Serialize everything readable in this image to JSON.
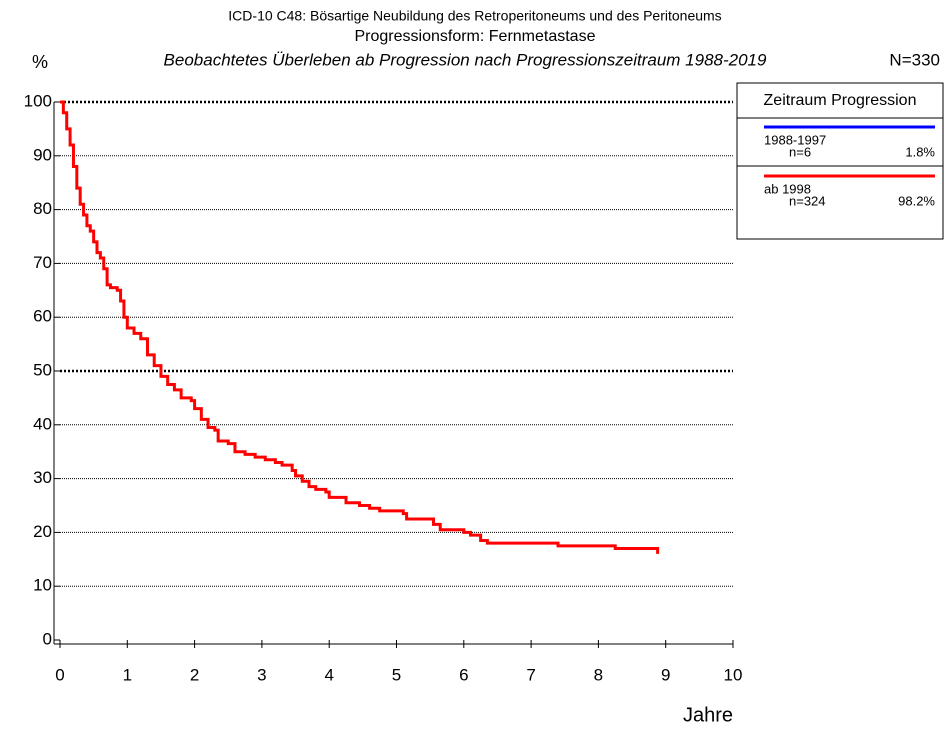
{
  "chart_data": {
    "type": "step",
    "title": "ICD-10 C48: Bösartige Neubildung des Retroperitoneums und des Peritoneums",
    "subtitle_1": "Progressionsform: Fernmetastase",
    "subtitle_2": "Beobachtetes Überleben ab Progression nach Progressionszeitraum 1988-2019",
    "total_n": "N=330",
    "ylabel": "%",
    "xlabel": "Jahre",
    "xlim": [
      0,
      10
    ],
    "xticks": [
      0,
      1,
      2,
      3,
      4,
      5,
      6,
      7,
      8,
      9,
      10
    ],
    "ylim": [
      0,
      100
    ],
    "yticks": [
      0,
      10,
      20,
      30,
      40,
      50,
      60,
      70,
      80,
      90,
      100
    ],
    "grid": true,
    "legend": {
      "title": "Zeitraum Progression",
      "position": "upper right",
      "entries": [
        {
          "name": "1988-1997",
          "color": "#0000ff",
          "n": "n=6",
          "share": "1.8%"
        },
        {
          "name": "ab 1998",
          "color": "#ff0000",
          "n": "n=324",
          "share": "98.2%"
        }
      ]
    },
    "series": [
      {
        "name": "ab 1998",
        "color": "#ff0000",
        "x": [
          0,
          0.05,
          0.1,
          0.15,
          0.2,
          0.25,
          0.3,
          0.35,
          0.4,
          0.45,
          0.5,
          0.55,
          0.6,
          0.65,
          0.7,
          0.75,
          0.85,
          0.9,
          0.95,
          1.0,
          1.1,
          1.2,
          1.3,
          1.4,
          1.5,
          1.6,
          1.7,
          1.8,
          1.95,
          2.0,
          2.1,
          2.2,
          2.3,
          2.35,
          2.5,
          2.6,
          2.75,
          2.9,
          3.05,
          3.2,
          3.3,
          3.45,
          3.5,
          3.6,
          3.7,
          3.8,
          3.95,
          4.0,
          4.25,
          4.45,
          4.6,
          4.75,
          5.1,
          5.15,
          5.55,
          5.65,
          6.0,
          6.1,
          6.25,
          6.35,
          7.4,
          8.25,
          8.88
        ],
        "values": [
          100,
          98,
          95,
          92,
          88,
          84,
          81,
          79,
          77,
          76,
          74,
          72,
          71,
          69,
          66,
          65.5,
          65,
          63,
          60,
          58,
          57,
          56,
          53,
          51,
          49,
          47.5,
          46.5,
          45,
          44.5,
          43,
          41,
          39.5,
          39,
          37,
          36.5,
          35,
          34.5,
          34,
          33.5,
          33,
          32.5,
          31.5,
          30.5,
          29.5,
          28.5,
          28,
          27.5,
          26.5,
          25.5,
          25,
          24.5,
          24,
          23.5,
          22.5,
          21.5,
          20.5,
          20,
          19.5,
          18.5,
          18,
          17.5,
          17,
          16
        ]
      }
    ]
  }
}
